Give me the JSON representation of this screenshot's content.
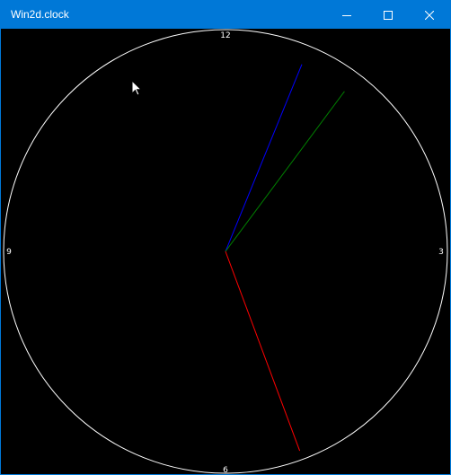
{
  "window": {
    "title": "Win2d.clock",
    "accent_color": "#0078d7",
    "controls": {
      "minimize_icon": "minimize-icon",
      "maximize_icon": "maximize-icon",
      "close_icon": "close-icon"
    }
  },
  "clock": {
    "background_color": "#000000",
    "face_color": "#ffffff",
    "numerals": {
      "twelve": "12",
      "three": "3",
      "six": "6",
      "nine": "9"
    },
    "hands": {
      "hour": {
        "color": "#0000ff",
        "position_minutes": 3.7
      },
      "minute": {
        "color": "#008000",
        "position_minutes": 6.1
      },
      "second": {
        "color": "#ff0000",
        "position_minutes": 26.6
      }
    }
  }
}
